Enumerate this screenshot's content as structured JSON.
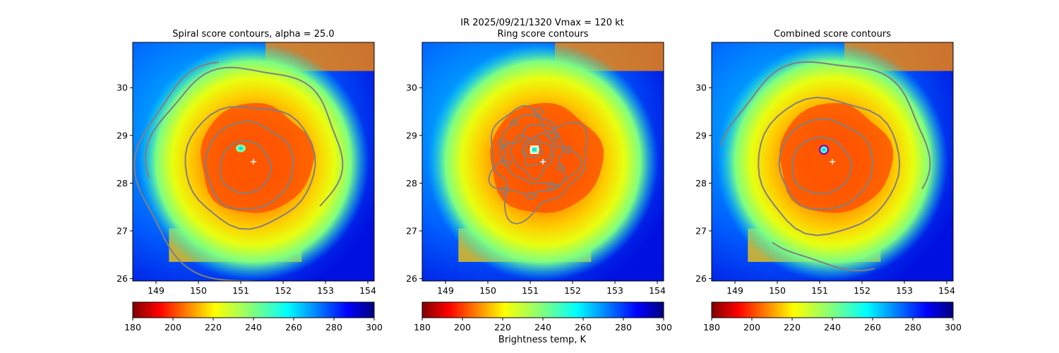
{
  "figure": {
    "suptitle": "IR  2025/09/21/1320    Vmax = 120 kt",
    "colorbar_label": "Brightness temp, K"
  },
  "chart_data": [
    {
      "type": "heatmap",
      "title": "Spiral score contours, alpha = 25.0",
      "xlim": [
        148.45,
        154.15
      ],
      "ylim": [
        25.95,
        30.95
      ],
      "xticks": [
        "149",
        "150",
        "151",
        "152",
        "153",
        "154"
      ],
      "yticks": [
        "26",
        "27",
        "28",
        "29",
        "30"
      ],
      "colorbar": {
        "min": 180,
        "max": 300,
        "ticks": [
          "180",
          "200",
          "220",
          "240",
          "260",
          "280",
          "300"
        ]
      },
      "storm_center": [
        151.3,
        28.45
      ],
      "eye": [
        151.0,
        28.73
      ],
      "contour_style": "spiral"
    },
    {
      "type": "heatmap",
      "title": "Ring score contours",
      "xlim": [
        148.45,
        154.15
      ],
      "ylim": [
        25.95,
        30.95
      ],
      "xticks": [
        "149",
        "150",
        "151",
        "152",
        "153",
        "154"
      ],
      "yticks": [
        "26",
        "27",
        "28",
        "29",
        "30"
      ],
      "colorbar": {
        "min": 180,
        "max": 300,
        "ticks": [
          "180",
          "200",
          "220",
          "240",
          "260",
          "280",
          "300"
        ]
      },
      "storm_center": [
        151.3,
        28.45
      ],
      "eye": [
        151.1,
        28.7
      ],
      "ring_marker": [
        151.1,
        28.7
      ],
      "contour_style": "ring"
    },
    {
      "type": "heatmap",
      "title": "Combined score contours",
      "xlim": [
        148.45,
        154.15
      ],
      "ylim": [
        25.95,
        30.95
      ],
      "xticks": [
        "149",
        "150",
        "151",
        "152",
        "153",
        "154"
      ],
      "yticks": [
        "26",
        "27",
        "28",
        "29",
        "30"
      ],
      "colorbar": {
        "min": 180,
        "max": 300,
        "ticks": [
          "180",
          "200",
          "220",
          "240",
          "260",
          "280",
          "300"
        ]
      },
      "storm_center": [
        151.3,
        28.45
      ],
      "eye": [
        151.1,
        28.7
      ],
      "combined_marker": [
        151.1,
        28.7
      ],
      "contour_style": "combined"
    }
  ],
  "colors": {
    "contour": "#808080",
    "center_marker": "#ffffff",
    "combined_ring": "#7a00cc"
  }
}
